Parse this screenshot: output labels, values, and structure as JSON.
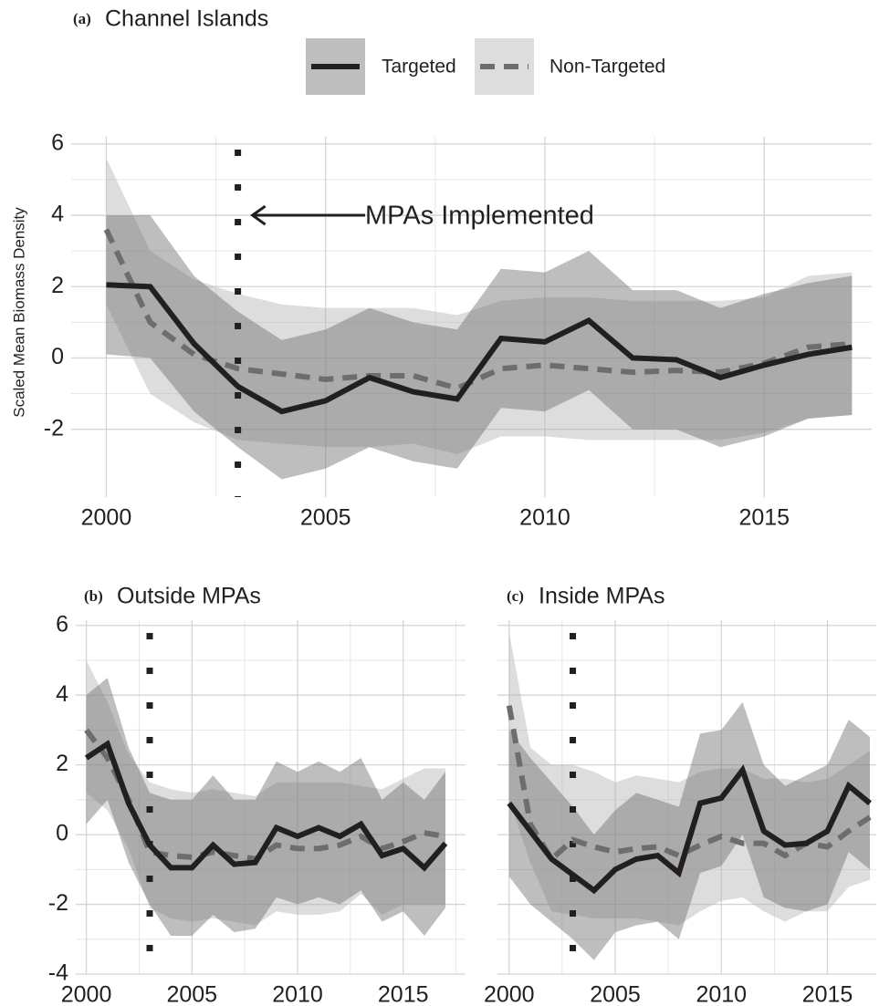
{
  "chart_data": [
    {
      "type": "line",
      "tag": "(a)",
      "title": "Channel Islands",
      "ylabel": "Scaled Mean Biomass Density",
      "x": [
        2000,
        2001,
        2002,
        2003,
        2004,
        2005,
        2006,
        2007,
        2008,
        2009,
        2010,
        2011,
        2012,
        2013,
        2014,
        2015,
        2016,
        2017
      ],
      "xlim": [
        1999.2,
        2017.45
      ],
      "xticks": [
        2000,
        2005,
        2010,
        2015
      ],
      "ylim": [
        -3.9,
        6.2
      ],
      "yticks": [
        6,
        4,
        2,
        0,
        -2
      ],
      "grid": true,
      "ytick_labels": true,
      "mpa_year": 2003,
      "annotation": {
        "text": "MPAs Implemented",
        "y": 4
      },
      "series": [
        {
          "name": "Targeted",
          "color": "#231f20",
          "dash": false,
          "band_color": "#6e6e6e",
          "values": [
            2.05,
            2.0,
            0.4,
            -0.8,
            -1.5,
            -1.2,
            -0.55,
            -0.95,
            -1.15,
            0.55,
            0.45,
            1.05,
            0.0,
            -0.05,
            -0.55,
            -0.2,
            0.1,
            0.3
          ],
          "upper": [
            4.0,
            4.0,
            2.3,
            1.3,
            0.5,
            0.8,
            1.4,
            1.0,
            0.8,
            2.5,
            2.4,
            3.0,
            1.9,
            1.9,
            1.4,
            1.8,
            2.1,
            2.3
          ],
          "lower": [
            0.1,
            0.0,
            -1.5,
            -2.5,
            -3.4,
            -3.1,
            -2.5,
            -2.9,
            -3.1,
            -1.4,
            -1.5,
            -0.9,
            -2.0,
            -2.0,
            -2.5,
            -2.2,
            -1.7,
            -1.6
          ]
        },
        {
          "name": "Non-Targeted",
          "color": "#6d6d6d",
          "dash": true,
          "band_color": "#b4b4b4",
          "values": [
            3.6,
            1.0,
            0.1,
            -0.3,
            -0.45,
            -0.6,
            -0.5,
            -0.5,
            -0.85,
            -0.3,
            -0.2,
            -0.3,
            -0.4,
            -0.35,
            -0.4,
            -0.15,
            0.3,
            0.4
          ],
          "upper": [
            5.6,
            3.0,
            2.2,
            1.8,
            1.5,
            1.4,
            1.4,
            1.4,
            1.2,
            1.6,
            1.7,
            1.7,
            1.6,
            1.6,
            1.6,
            1.7,
            2.3,
            2.4
          ],
          "lower": [
            1.5,
            -1.0,
            -1.8,
            -2.3,
            -2.4,
            -2.5,
            -2.5,
            -2.4,
            -2.7,
            -2.2,
            -2.2,
            -2.3,
            -2.3,
            -2.3,
            -2.3,
            -2.1,
            -1.7,
            -1.6
          ]
        }
      ]
    },
    {
      "type": "line",
      "tag": "(b)",
      "title": "Outside MPAs",
      "x": [
        2000,
        2001,
        2002,
        2003,
        2004,
        2005,
        2006,
        2007,
        2008,
        2009,
        2010,
        2011,
        2012,
        2013,
        2014,
        2015,
        2016,
        2017
      ],
      "xlim": [
        1999.5,
        2017.95
      ],
      "xticks": [
        2000,
        2005,
        2010,
        2015
      ],
      "ylim": [
        -4,
        6.15
      ],
      "yticks": [
        6,
        4,
        2,
        0,
        -2,
        -4
      ],
      "grid": true,
      "ytick_labels": true,
      "mpa_year": 2003,
      "series": [
        {
          "name": "Targeted",
          "color": "#231f20",
          "dash": false,
          "band_color": "#6e6e6e",
          "values": [
            2.2,
            2.6,
            0.9,
            -0.3,
            -0.95,
            -0.95,
            -0.3,
            -0.85,
            -0.8,
            0.2,
            -0.05,
            0.2,
            -0.05,
            0.3,
            -0.6,
            -0.4,
            -0.95,
            -0.25
          ],
          "upper": [
            4.0,
            4.5,
            2.5,
            1.2,
            1.0,
            1.0,
            1.7,
            1.0,
            1.0,
            2.1,
            1.8,
            2.1,
            1.8,
            2.2,
            1.0,
            1.5,
            1.0,
            1.8
          ],
          "lower": [
            0.3,
            1.0,
            -0.8,
            -2.0,
            -2.9,
            -2.9,
            -2.3,
            -2.8,
            -2.7,
            -1.8,
            -2.0,
            -1.8,
            -2.0,
            -1.6,
            -2.5,
            -2.2,
            -2.9,
            -2.1
          ]
        },
        {
          "name": "Non-Targeted",
          "color": "#6d6d6d",
          "dash": true,
          "band_color": "#b4b4b4",
          "values": [
            3.0,
            2.2,
            1.0,
            -0.5,
            -0.6,
            -0.65,
            -0.5,
            -0.6,
            -0.7,
            -0.3,
            -0.4,
            -0.4,
            -0.3,
            -0.05,
            -0.4,
            -0.2,
            0.05,
            -0.05
          ],
          "upper": [
            5.0,
            3.8,
            2.3,
            1.5,
            1.3,
            1.2,
            1.3,
            1.2,
            1.1,
            1.5,
            1.5,
            1.5,
            1.5,
            1.4,
            1.3,
            1.6,
            1.9,
            1.9
          ],
          "lower": [
            1.2,
            0.7,
            -0.4,
            -2.1,
            -2.4,
            -2.5,
            -2.4,
            -2.5,
            -2.6,
            -2.2,
            -2.3,
            -2.3,
            -2.2,
            -1.7,
            -2.3,
            -2.0,
            -2.0,
            -2.0
          ]
        }
      ]
    },
    {
      "type": "line",
      "tag": "(c)",
      "title": "Inside MPAs",
      "x": [
        2000,
        2001,
        2002,
        2003,
        2004,
        2005,
        2006,
        2007,
        2008,
        2009,
        2010,
        2011,
        2012,
        2013,
        2014,
        2015,
        2016,
        2017
      ],
      "xlim": [
        1999.45,
        2017.3
      ],
      "xticks": [
        2000,
        2005,
        2010,
        2015
      ],
      "ylim": [
        -4,
        6.15
      ],
      "yticks": [
        6,
        4,
        2,
        0,
        -2,
        -4
      ],
      "grid": true,
      "ytick_labels": false,
      "mpa_year": 2003,
      "series": [
        {
          "name": "Targeted",
          "color": "#231f20",
          "dash": false,
          "band_color": "#6e6e6e",
          "values": [
            0.9,
            0.1,
            -0.7,
            -1.15,
            -1.6,
            -1.0,
            -0.7,
            -0.6,
            -1.1,
            0.9,
            1.05,
            1.85,
            0.1,
            -0.3,
            -0.25,
            0.1,
            1.4,
            0.9
          ],
          "upper": [
            3.0,
            2.2,
            1.5,
            0.8,
            0.0,
            0.7,
            1.2,
            1.0,
            0.8,
            2.9,
            3.0,
            3.8,
            2.0,
            1.4,
            1.7,
            2.0,
            3.3,
            2.8
          ],
          "lower": [
            -1.2,
            -2.0,
            -2.5,
            -3.0,
            -3.6,
            -2.8,
            -2.6,
            -2.5,
            -3.0,
            -1.1,
            -0.9,
            0.0,
            -1.8,
            -2.1,
            -2.2,
            -2.0,
            -0.5,
            -1.0
          ]
        },
        {
          "name": "Non-Targeted",
          "color": "#6d6d6d",
          "dash": true,
          "band_color": "#b4b4b4",
          "values": [
            3.7,
            0.3,
            -0.7,
            -0.15,
            -0.35,
            -0.5,
            -0.4,
            -0.35,
            -0.6,
            -0.3,
            -0.05,
            -0.25,
            -0.25,
            -0.6,
            -0.25,
            -0.35,
            0.1,
            0.5
          ],
          "upper": [
            5.8,
            2.5,
            2.0,
            2.0,
            1.8,
            1.5,
            1.7,
            1.6,
            1.5,
            1.8,
            1.9,
            1.9,
            1.6,
            1.6,
            1.5,
            1.6,
            2.0,
            2.4
          ],
          "lower": [
            1.0,
            -0.8,
            -2.2,
            -2.3,
            -2.4,
            -2.4,
            -2.4,
            -2.5,
            -2.6,
            -2.2,
            -1.9,
            -1.8,
            -2.2,
            -2.5,
            -2.2,
            -2.2,
            -1.5,
            -1.3
          ]
        }
      ]
    }
  ]
}
